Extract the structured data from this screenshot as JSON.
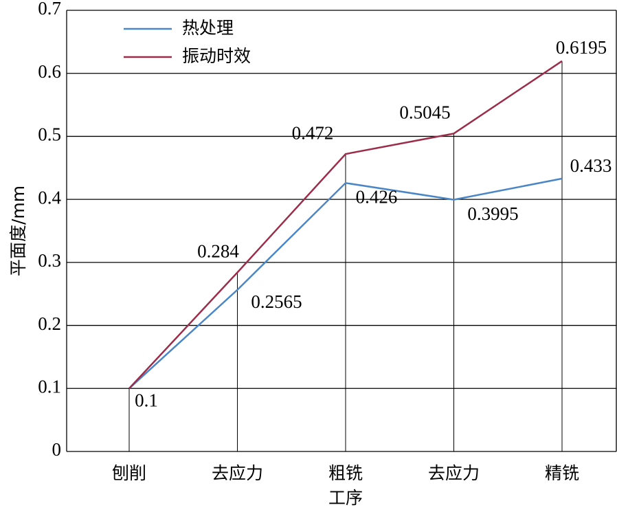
{
  "chart_data": {
    "type": "line",
    "y_label": "平面度/mm",
    "x_label": "工序",
    "categories": [
      "刨削",
      "去应力",
      "粗铣",
      "去应力",
      "精铣"
    ],
    "series": [
      {
        "name": "热处理",
        "color": "#4a86c6",
        "values": [
          0.1,
          0.2565,
          0.426,
          0.3995,
          0.433
        ]
      },
      {
        "name": "振动时效",
        "color": "#9b2d4a",
        "values": [
          0.1,
          0.284,
          0.472,
          0.5045,
          0.6195
        ]
      }
    ],
    "ylim": [
      0,
      0.7
    ],
    "yticks": [
      0,
      0.1,
      0.2,
      0.3,
      0.4,
      0.5,
      0.6,
      0.7
    ],
    "grid": true,
    "legend": "top-left"
  }
}
